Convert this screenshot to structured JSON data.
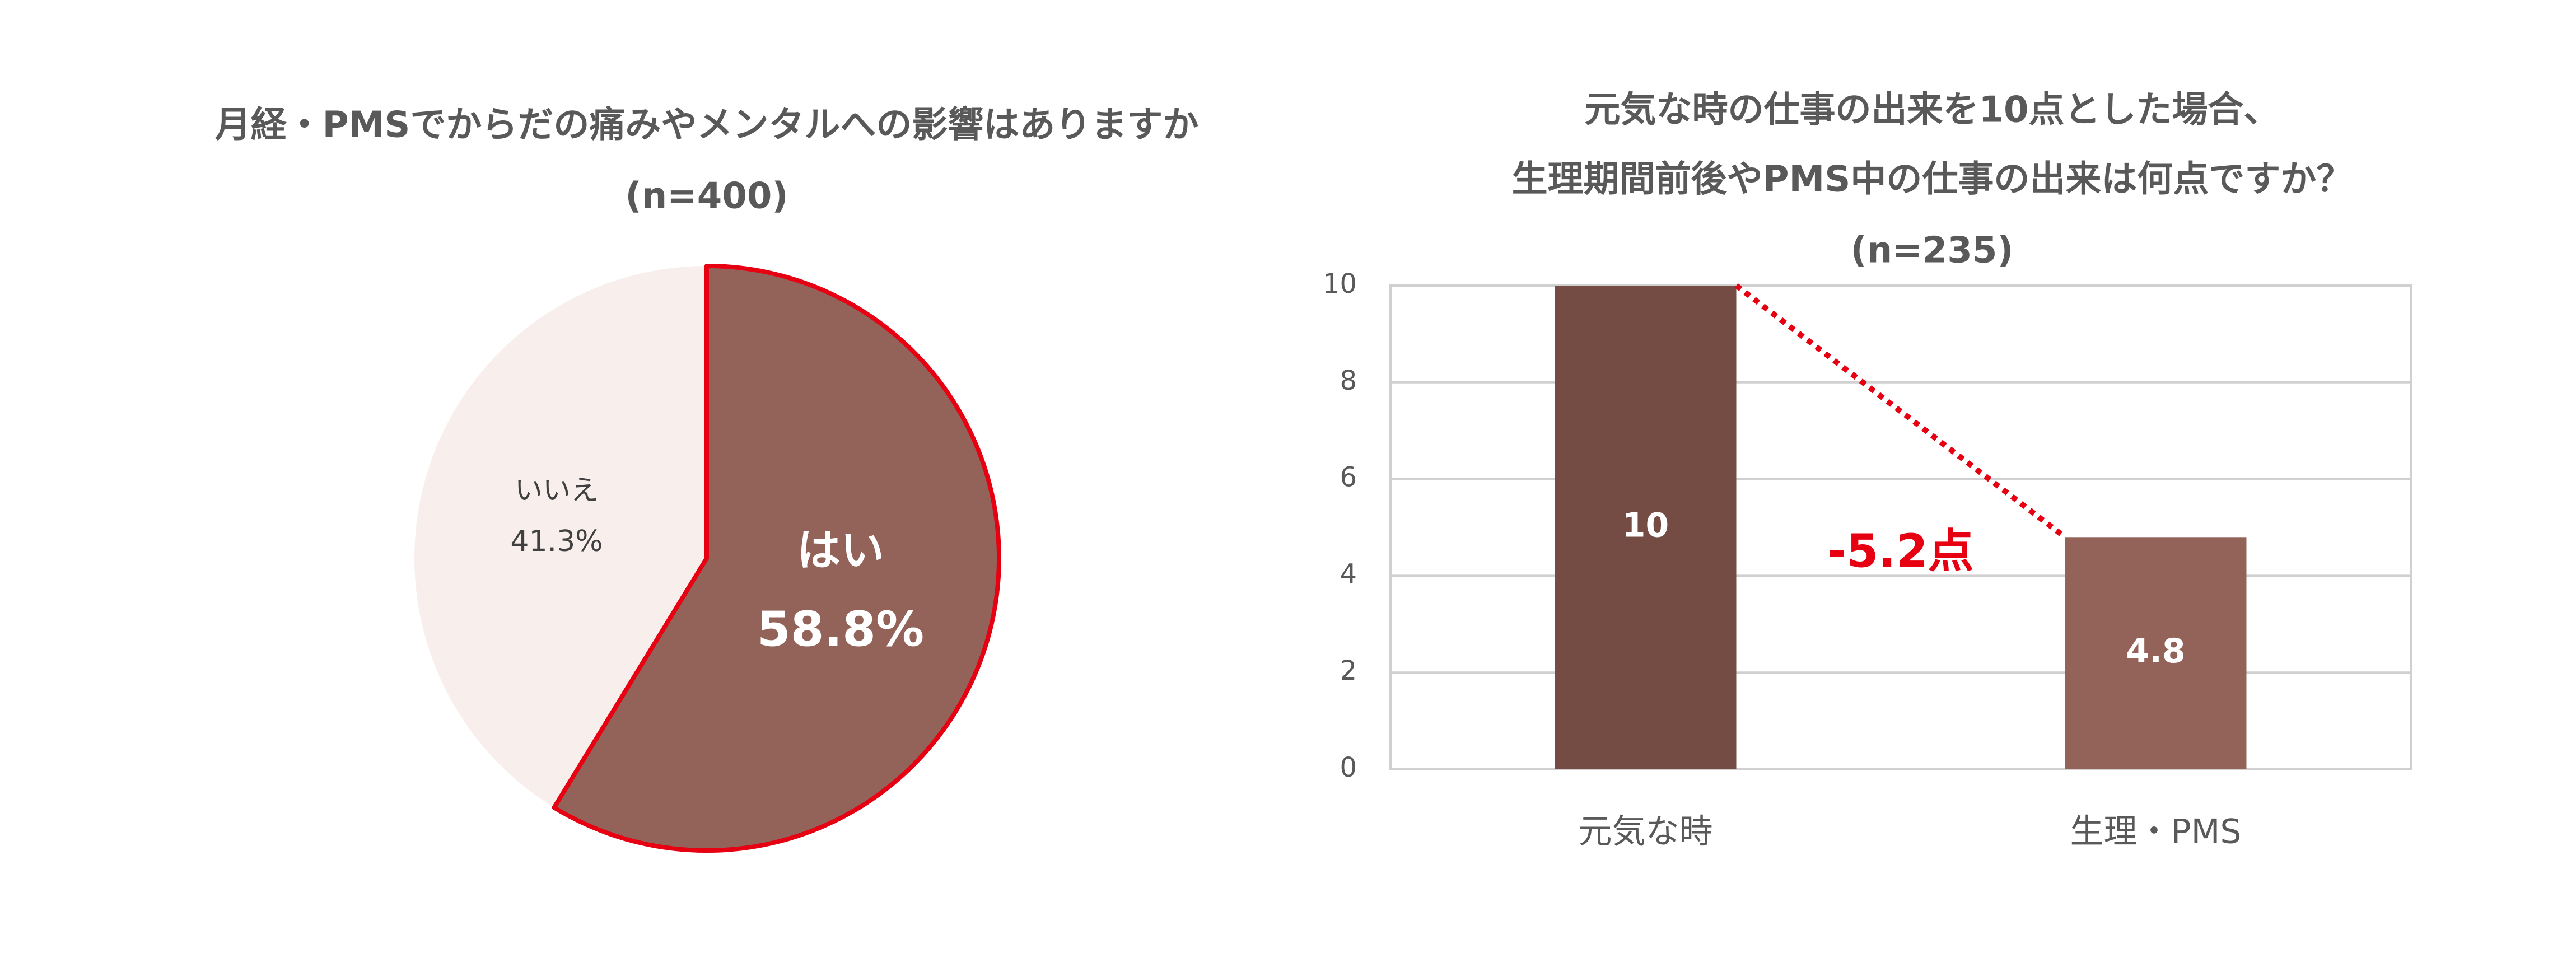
{
  "chart_data": [
    {
      "type": "pie",
      "title": "月経・PMSでからだの痛みやメンタルへの影響はありますか",
      "subtitle": "(n=400)",
      "categories": [
        "はい",
        "いいえ"
      ],
      "values": [
        58.8,
        41.3
      ],
      "value_labels": [
        "58.8%",
        "41.3%"
      ],
      "colors": [
        "#936359",
        "#f8efec"
      ],
      "highlight_color": "#e60012"
    },
    {
      "type": "bar",
      "title": [
        "元気な時の仕事の出来を10点とした場合、",
        "生理期間前後やPMS中の仕事の出来は何点ですか？"
      ],
      "subtitle": "(n=235)",
      "categories": [
        "元気な時",
        "生理・PMS"
      ],
      "values": [
        10,
        4.8
      ],
      "colors": [
        "#744c44",
        "#936359"
      ],
      "ylim": [
        0,
        10
      ],
      "yticks": [
        0,
        2,
        4,
        6,
        8,
        10
      ],
      "grid": true,
      "annotation": "-5.2点",
      "annotation_color": "#e60012"
    }
  ]
}
